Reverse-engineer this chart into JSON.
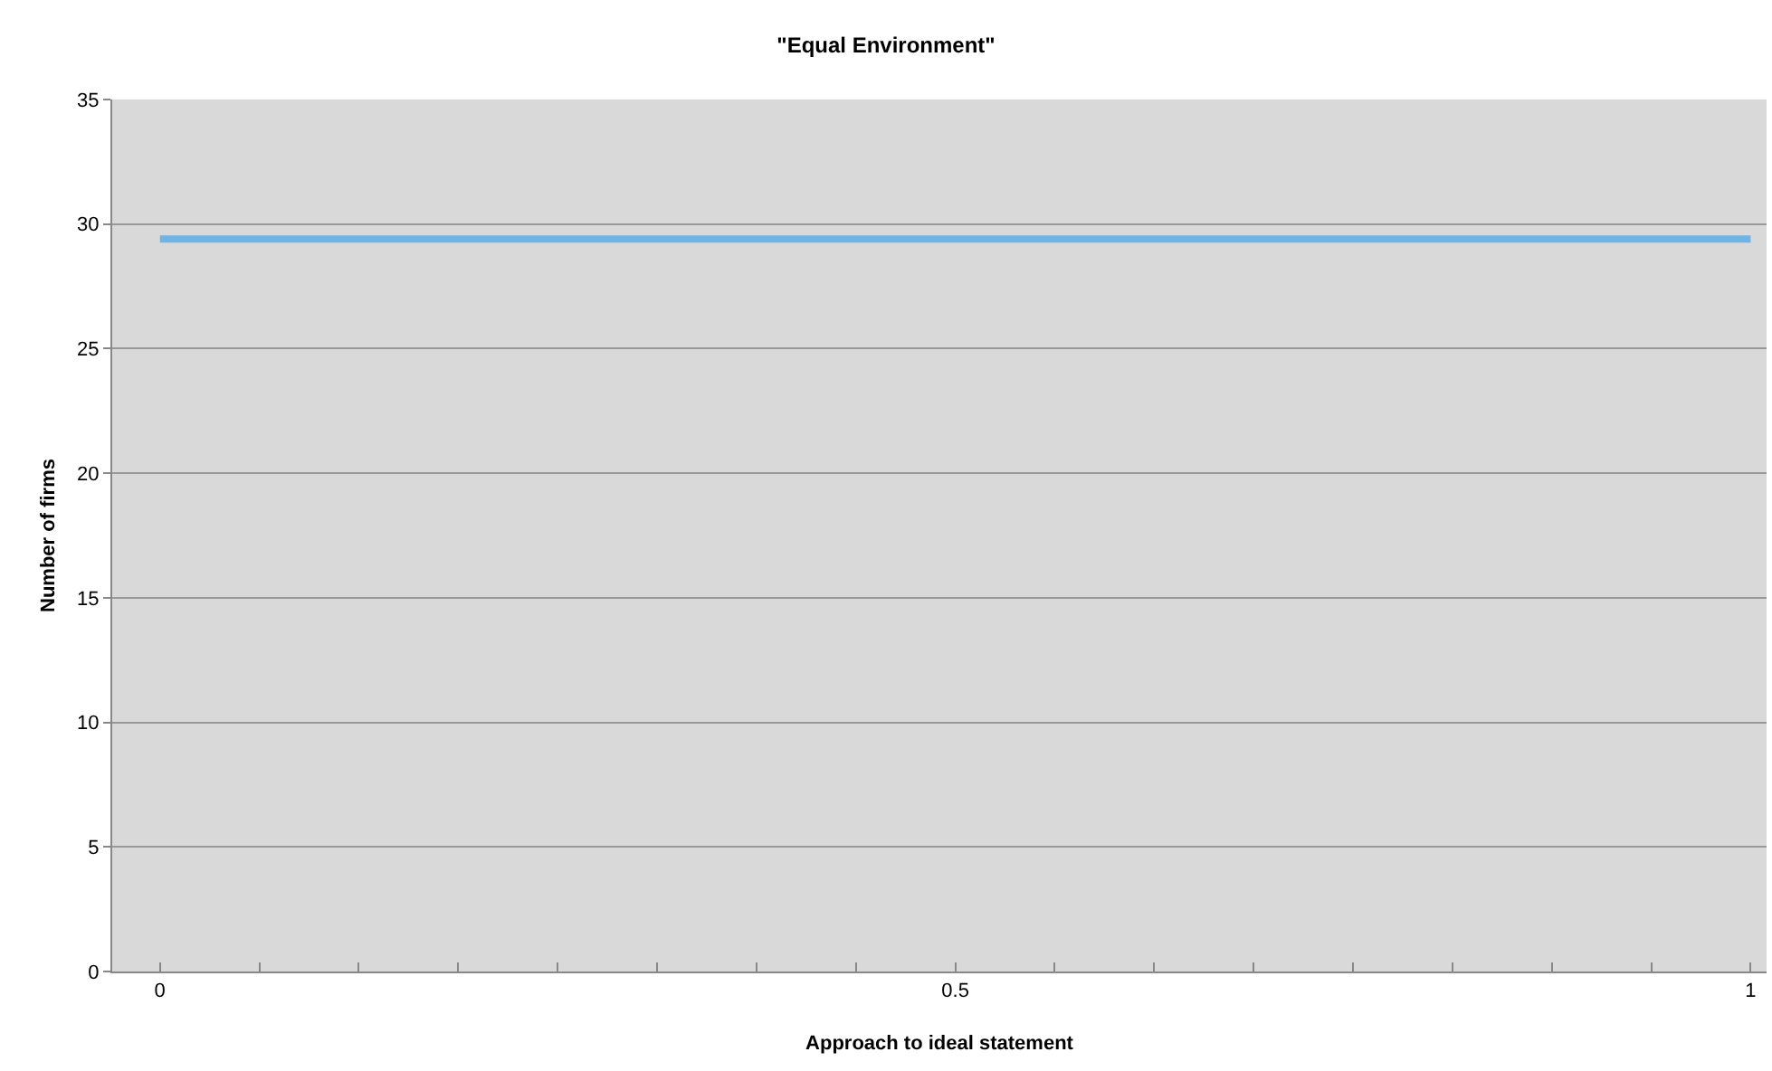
{
  "chart_data": {
    "type": "line",
    "title": "\"Equal Environment\"",
    "xlabel": "Approach to ideal statement",
    "ylabel": "Number of firms",
    "x": [
      0,
      1
    ],
    "series": [
      {
        "color": "#6eb4e4",
        "values": [
          29.4,
          29.4
        ]
      }
    ],
    "xlim": [
      -0.03,
      1.01
    ],
    "xticks": [
      0,
      {
        "value": 0.0625,
        "label": null
      },
      {
        "value": 0.125,
        "label": null
      },
      {
        "value": 0.1875,
        "label": null
      },
      {
        "value": 0.25,
        "label": null
      },
      {
        "value": 0.3125,
        "label": null
      },
      {
        "value": 0.375,
        "label": null
      },
      {
        "value": 0.4375,
        "label": null
      },
      0.5,
      {
        "value": 0.5625,
        "label": null
      },
      {
        "value": 0.625,
        "label": null
      },
      {
        "value": 0.6875,
        "label": null
      },
      {
        "value": 0.75,
        "label": null
      },
      {
        "value": 0.8125,
        "label": null
      },
      {
        "value": 0.875,
        "label": null
      },
      {
        "value": 0.9375,
        "label": null
      },
      1
    ],
    "ylim": [
      0,
      35
    ],
    "yticks": [
      0,
      5,
      10,
      15,
      20,
      25,
      30,
      35
    ],
    "grid": "y",
    "marker": "none",
    "line_style": "solid"
  }
}
